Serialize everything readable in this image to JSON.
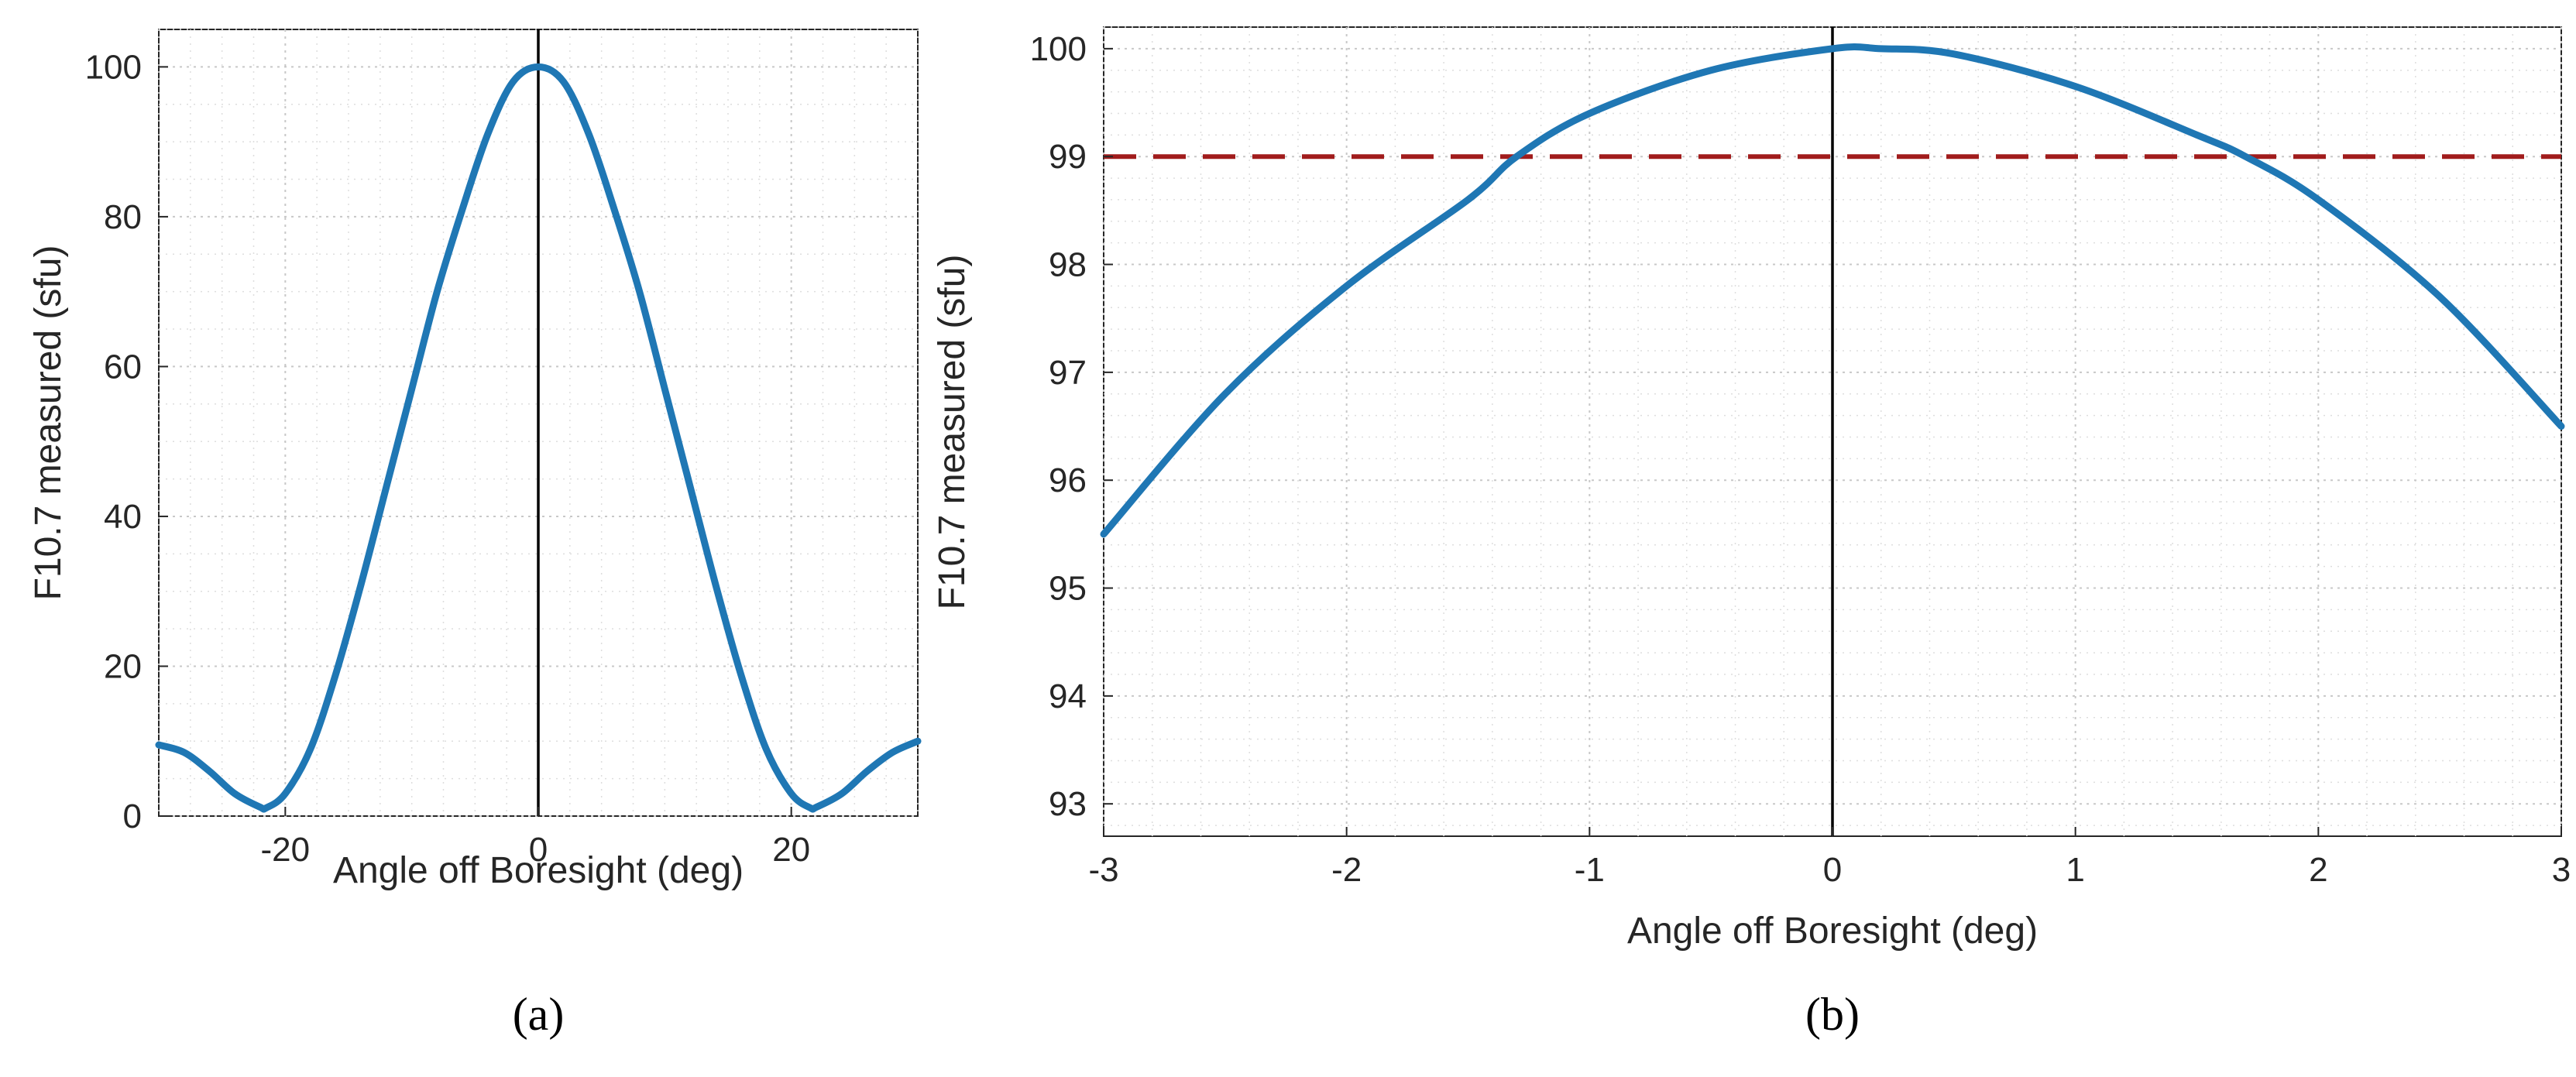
{
  "colors": {
    "curve": "#1f77b4",
    "threshold": "#a11c1c",
    "boresight": "#000000",
    "axis": "#262626"
  },
  "chart_data": [
    {
      "type": "line",
      "panel_label": "(a)",
      "xlabel": "Angle off Boresight (deg)",
      "ylabel": "F10.7 measured (sfu)",
      "xlim": [
        -30,
        30
      ],
      "ylim": [
        0,
        105
      ],
      "xticks": [
        -20,
        0,
        20
      ],
      "xtick_labels": [
        "-20",
        "0",
        "20"
      ],
      "yticks": [
        0,
        20,
        40,
        60,
        80,
        100
      ],
      "ytick_labels": [
        "0",
        "20",
        "40",
        "60",
        "80",
        "100"
      ],
      "x_minor_step": 2.5,
      "y_minor_step": 5,
      "grid": true,
      "vertical_line_x": 0,
      "series": [
        {
          "name": "F10.7 measured",
          "x": [
            -30,
            -28,
            -26,
            -24,
            -22,
            -21.5,
            -20,
            -18,
            -16,
            -14,
            -12,
            -10,
            -8,
            -6,
            -4,
            -2,
            0,
            2,
            4,
            6,
            8,
            10,
            12,
            14,
            16,
            18,
            20,
            21.5,
            22,
            24,
            26,
            28,
            30
          ],
          "values": [
            9.5,
            8.5,
            6,
            3,
            1.2,
            1.1,
            3,
            9,
            19,
            31,
            44,
            57,
            70,
            81,
            91,
            98,
            100,
            98,
            91,
            81,
            70,
            57,
            44,
            31,
            19,
            9,
            3,
            1.1,
            1.2,
            3,
            6,
            8.5,
            10
          ]
        }
      ]
    },
    {
      "type": "line",
      "panel_label": "(b)",
      "xlabel": "Angle off Boresight (deg)",
      "ylabel": "F10.7 measured (sfu)",
      "xlim": [
        -3,
        3
      ],
      "ylim": [
        92.7,
        100.2
      ],
      "xticks": [
        -3,
        -2,
        -1,
        0,
        1,
        2,
        3
      ],
      "xtick_labels": [
        "-3",
        "-2",
        "-1",
        "0",
        "1",
        "2",
        "3"
      ],
      "yticks": [
        93,
        94,
        95,
        96,
        97,
        98,
        99,
        100
      ],
      "ytick_labels": [
        "93",
        "94",
        "95",
        "96",
        "97",
        "98",
        "99",
        "100"
      ],
      "x_minor_step": 0.2,
      "y_minor_step": 0.2,
      "grid": true,
      "vertical_line_x": 0,
      "threshold_y": 99,
      "series": [
        {
          "name": "F10.7 measured",
          "x": [
            -3,
            -2.5,
            -2,
            -1.5,
            -1.3,
            -1,
            -0.5,
            0,
            0.2,
            0.5,
            1,
            1.5,
            1.7,
            2,
            2.5,
            3
          ],
          "values": [
            95.5,
            96.8,
            97.8,
            98.6,
            99.0,
            99.4,
            99.8,
            100.0,
            100.0,
            99.95,
            99.65,
            99.2,
            99.0,
            98.6,
            97.7,
            96.5
          ]
        }
      ]
    }
  ]
}
